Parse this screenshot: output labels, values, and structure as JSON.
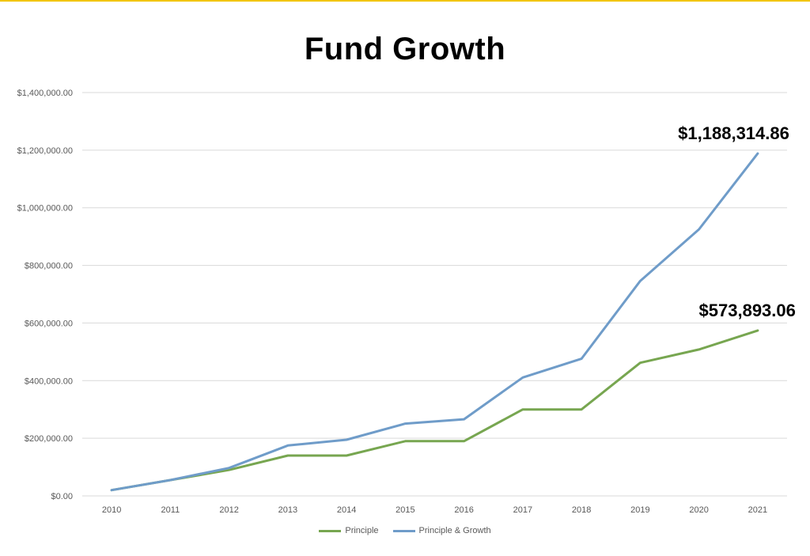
{
  "chart_data": {
    "type": "line",
    "title": "Fund Growth",
    "xlabel": "",
    "ylabel": "",
    "categories": [
      "2010",
      "2011",
      "2012",
      "2013",
      "2014",
      "2015",
      "2016",
      "2017",
      "2018",
      "2019",
      "2020",
      "2021"
    ],
    "ylim": [
      0,
      1400000
    ],
    "yticks": [
      {
        "value": 0,
        "label": "$0.00"
      },
      {
        "value": 200000,
        "label": "$200,000.00"
      },
      {
        "value": 400000,
        "label": "$400,000.00"
      },
      {
        "value": 600000,
        "label": "$600,000.00"
      },
      {
        "value": 800000,
        "label": "$800,000.00"
      },
      {
        "value": 1000000,
        "label": "$1,000,000.00"
      },
      {
        "value": 1200000,
        "label": "$1,200,000.00"
      },
      {
        "value": 1400000,
        "label": "$1,400,000.00"
      }
    ],
    "grid": true,
    "legend_position": "bottom",
    "series": [
      {
        "name": "Principle",
        "color": "#77a650",
        "values": [
          20000,
          55000,
          90000,
          140000,
          140000,
          190000,
          190000,
          300000,
          300000,
          462000,
          508000,
          573893.06
        ],
        "end_label": "$573,893.06"
      },
      {
        "name": "Principle & Growth",
        "color": "#6f9cc9",
        "values": [
          20000,
          55000,
          97000,
          175000,
          195000,
          251000,
          266000,
          411000,
          476000,
          746000,
          925000,
          1188314.86
        ],
        "end_label": "$1,188,314.86"
      }
    ]
  },
  "colors": {
    "accent_rule": "#f2c500",
    "gridline": "#d9d9d9",
    "axis_text": "#595959"
  }
}
